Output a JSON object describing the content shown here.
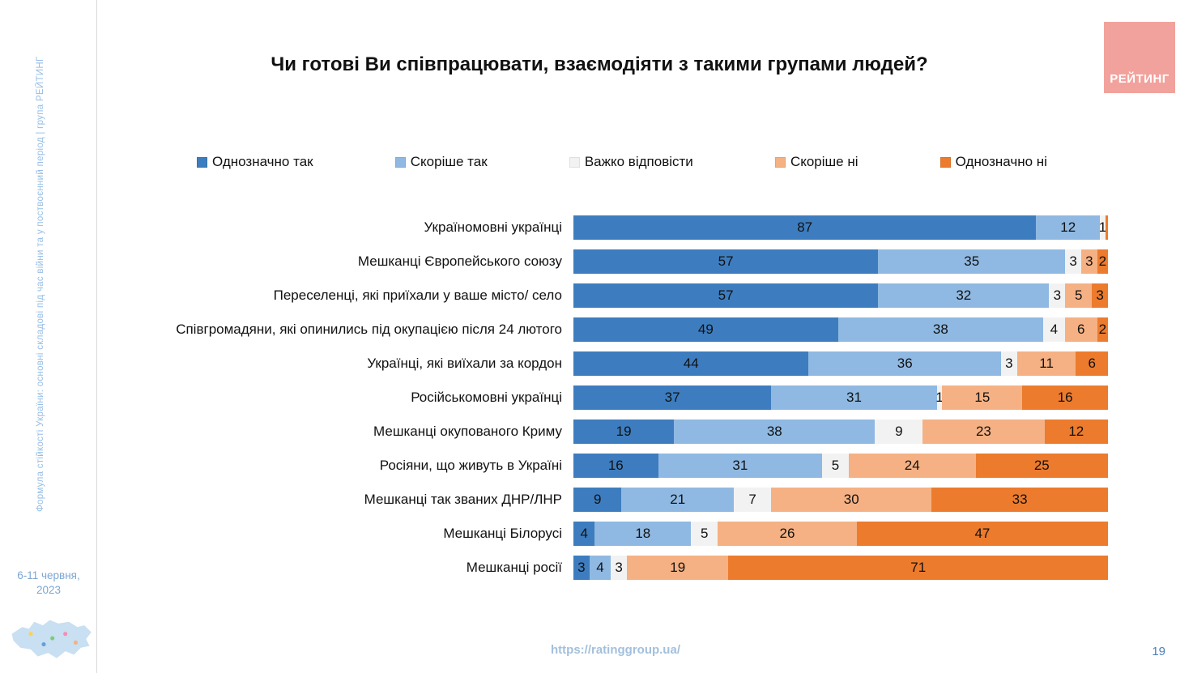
{
  "slide": {
    "title": "Чи готові Ви співпрацювати, взаємодіяти з такими групами людей?",
    "logo_text": "РЕЙТИНГ",
    "sidebar_vertical_text": "Формула стійкості України: основні складові під час війни та у поствоєнний період | група РЕЙТИНГ",
    "sidebar_date": "6-11 червня, 2023",
    "footer_url": "https://ratinggroup.ua/",
    "page_number": "19"
  },
  "chart_data": {
    "type": "bar",
    "orientation": "horizontal",
    "stacked": true,
    "unit": "%",
    "title": "Чи готові Ви співпрацювати, взаємодіяти з такими групами людей?",
    "legend_position": "top",
    "xlim": [
      0,
      100
    ],
    "grid": false,
    "categories": [
      "Україномовні українці",
      "Мешканці Європейського союзу",
      "Переселенці, які приїхали у ваше місто/ село",
      "Співгромадяни, які опинились під окупацією після 24 лютого",
      "Українці, які виїхали за кордон",
      "Російськомовні українці",
      "Мешканці окупованого Криму",
      "Росіяни, що живуть в Україні",
      "Мешканці так званих ДНР/ЛНР",
      "Мешканці Білорусі",
      "Мешканці росії"
    ],
    "series": [
      {
        "name": "Однозначно так",
        "color": "#3d7dbf",
        "values": [
          87,
          57,
          57,
          49,
          44,
          37,
          19,
          16,
          9,
          4,
          3
        ]
      },
      {
        "name": "Скоріше так",
        "color": "#8fb9e2",
        "values": [
          12,
          35,
          32,
          38,
          36,
          31,
          38,
          31,
          21,
          18,
          4
        ]
      },
      {
        "name": "Важко відповісти",
        "color": "#f2f2f2",
        "values": [
          1,
          3,
          3,
          4,
          3,
          1,
          9,
          5,
          7,
          5,
          3
        ]
      },
      {
        "name": "Скоріше ні",
        "color": "#f5b183",
        "values": [
          0,
          3,
          5,
          6,
          11,
          15,
          23,
          24,
          30,
          26,
          19
        ]
      },
      {
        "name": "Однозначно ні",
        "color": "#ec7b2d",
        "values": [
          0.5,
          2,
          3,
          2,
          6,
          16,
          12,
          25,
          33,
          47,
          71
        ]
      }
    ]
  }
}
